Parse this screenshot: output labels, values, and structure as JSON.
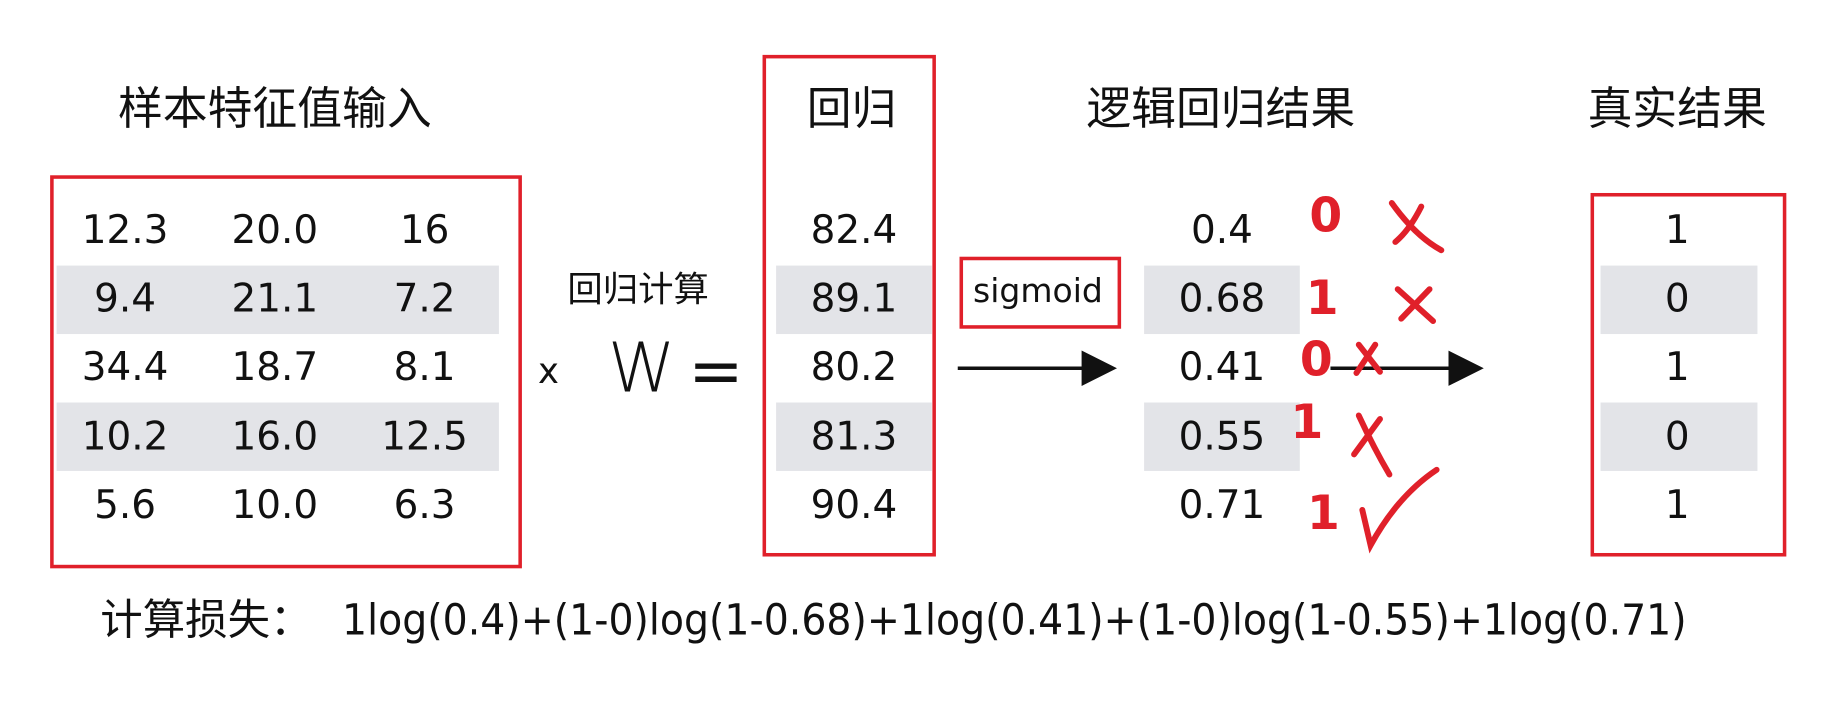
{
  "input": {
    "title": "样本特征值输入",
    "rows": [
      [
        "12.3",
        "20.0",
        "16"
      ],
      [
        "9.4",
        "21.1",
        "7.2"
      ],
      [
        "34.4",
        "18.7",
        "8.1"
      ],
      [
        "10.2",
        "16.0",
        "12.5"
      ],
      [
        "5.6",
        "10.0",
        "6.3"
      ]
    ]
  },
  "operation": {
    "label": "回归计算",
    "times": "x",
    "weight": "W",
    "equals": "="
  },
  "regression": {
    "title": "回归",
    "values": [
      "82.4",
      "89.1",
      "80.2",
      "81.3",
      "90.4"
    ]
  },
  "sigmoid": {
    "label": "sigmoid"
  },
  "logistic": {
    "title": "逻辑回归结果",
    "values": [
      "0.4",
      "0.68",
      "0.41",
      "0.55",
      "0.71"
    ],
    "predicted": [
      "0",
      "1",
      "0",
      "1",
      "1"
    ]
  },
  "truth": {
    "title": "真实结果",
    "values": [
      "1",
      "0",
      "1",
      "0",
      "1"
    ]
  },
  "loss": {
    "label": "计算损失：",
    "formula": "1log(0.4)+(1-0)log(1-0.68)+1log(0.41)+(1-0)log(1-0.55)+1log(0.71)"
  }
}
